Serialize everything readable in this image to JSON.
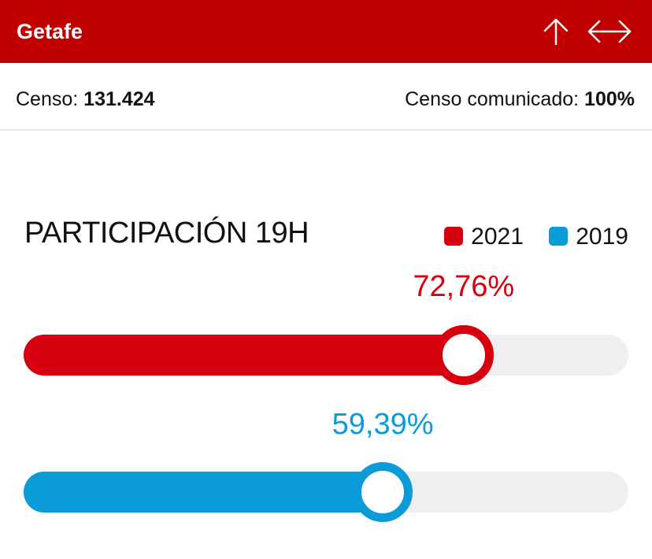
{
  "header": {
    "title": "Getafe",
    "icons": [
      "arrow-up-icon",
      "expand-horizontal-icon"
    ]
  },
  "census": {
    "label": "Censo:",
    "value": "131.424",
    "reported_label": "Censo comunicado:",
    "reported_value": "100%"
  },
  "participation": {
    "title": "PARTICIPACIÓN 19H",
    "legend": [
      {
        "label": "2021",
        "color": "#d7000f"
      },
      {
        "label": "2019",
        "color": "#0a9bd9"
      }
    ],
    "bars": [
      {
        "year": "2021",
        "value": 72.76,
        "label": "72,76%",
        "color": "#d7000f"
      },
      {
        "year": "2019",
        "value": 59.39,
        "label": "59,39%",
        "color": "#0a9bd9"
      }
    ]
  }
}
